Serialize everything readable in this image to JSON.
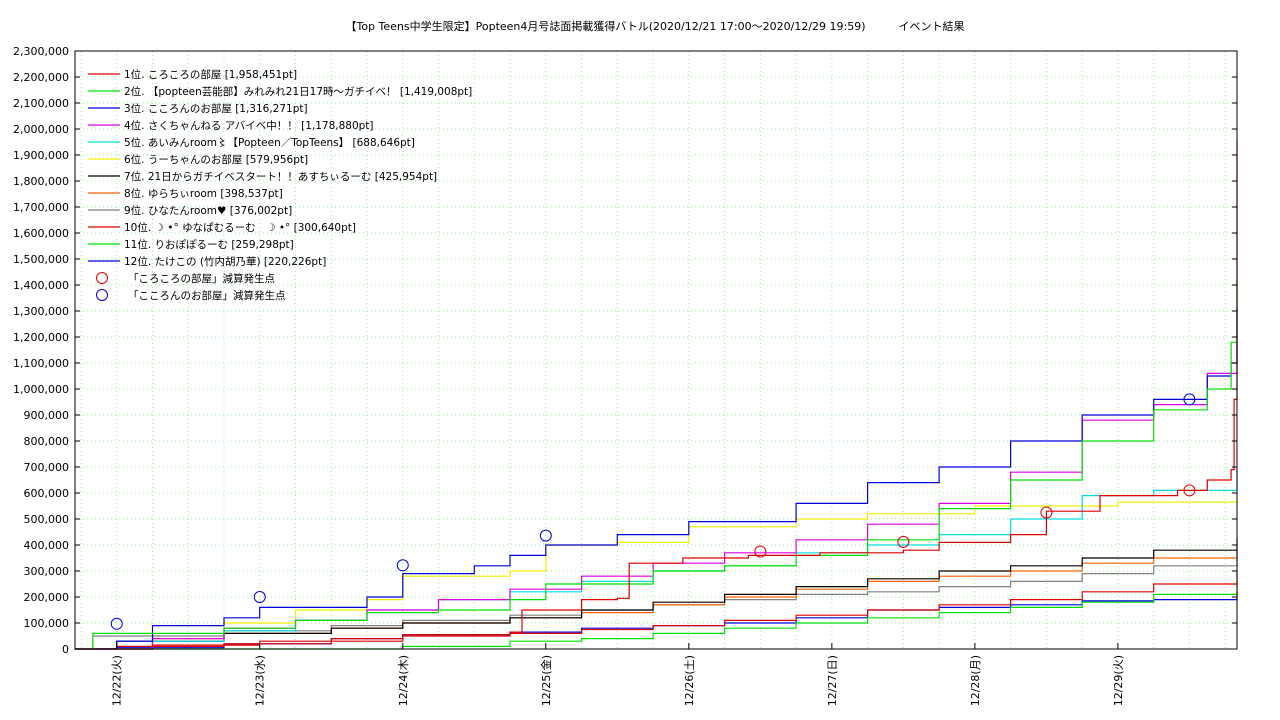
{
  "chart_data": {
    "type": "line",
    "title": "【Top Teens中学生限定】Popteen4月号誌面掲載獲得バトル(2020/12/21 17:00〜2020/12/29 19:59)　　　イベント結果",
    "xlabel": "",
    "ylabel": "",
    "grid": true,
    "legend_position": "top-left",
    "x_range": [
      "2020-12-21 17:00",
      "2020-12-29 19:59"
    ],
    "ylim": [
      0,
      2300000
    ],
    "y_ticks": [
      0,
      100000,
      200000,
      300000,
      400000,
      500000,
      600000,
      700000,
      800000,
      900000,
      1000000,
      1100000,
      1200000,
      1300000,
      1400000,
      1500000,
      1600000,
      1700000,
      1800000,
      1900000,
      2000000,
      2100000,
      2200000,
      2300000
    ],
    "y_tick_labels": [
      "0",
      "100,000",
      "200,000",
      "300,000",
      "400,000",
      "500,000",
      "600,000",
      "700,000",
      "800,000",
      "900,000",
      "1,000,000",
      "1,100,000",
      "1,200,000",
      "1,300,000",
      "1,400,000",
      "1,500,000",
      "1,600,000",
      "1,700,000",
      "1,800,000",
      "1,900,000",
      "2,000,000",
      "2,100,000",
      "2,200,000",
      "2,300,000"
    ],
    "x_ticks": [
      "2020-12-22",
      "2020-12-23",
      "2020-12-24",
      "2020-12-25",
      "2020-12-26",
      "2020-12-27",
      "2020-12-28",
      "2020-12-29"
    ],
    "x_tick_labels": [
      "12/22(火)",
      "12/23(水)",
      "12/24(木)",
      "12/25(金)",
      "12/26(土)",
      "12/27(日)",
      "12/28(月)",
      "12/29(火)"
    ],
    "series": [
      {
        "name": "1位. ころころの部屋 [1,958,451pt]",
        "color": "#e00000",
        "points": [
          [
            "2020-12-21 17:00",
            0
          ],
          [
            "2020-12-22 06:00",
            15000
          ],
          [
            "2020-12-23 00:00",
            30000
          ],
          [
            "2020-12-24 00:00",
            55000
          ],
          [
            "2020-12-24 18:00",
            65000
          ],
          [
            "2020-12-24 20:00",
            150000
          ],
          [
            "2020-12-25 06:00",
            190000
          ],
          [
            "2020-12-25 12:00",
            195000
          ],
          [
            "2020-12-25 14:00",
            330000
          ],
          [
            "2020-12-25 23:00",
            350000
          ],
          [
            "2020-12-26 10:00",
            360000
          ],
          [
            "2020-12-26 22:00",
            370000
          ],
          [
            "2020-12-27 12:00",
            380000
          ],
          [
            "2020-12-27 18:00",
            410000
          ],
          [
            "2020-12-28 06:00",
            440000
          ],
          [
            "2020-12-28 12:00",
            530000
          ],
          [
            "2020-12-28 21:00",
            590000
          ],
          [
            "2020-12-29 10:00",
            610000
          ],
          [
            "2020-12-29 15:00",
            650000
          ],
          [
            "2020-12-29 19:00",
            690000
          ],
          [
            "2020-12-29 19:30",
            960000
          ],
          [
            "2020-12-29 19:59",
            1958451
          ]
        ]
      },
      {
        "name": "2位. 【popteen芸能部】みれみれ21日17時〜ガチイベ！ [1,419,008pt]",
        "color": "#00e000",
        "points": [
          [
            "2020-12-21 17:00",
            0
          ],
          [
            "2020-12-21 20:00",
            60000
          ],
          [
            "2020-12-22 18:00",
            80000
          ],
          [
            "2020-12-23 06:00",
            110000
          ],
          [
            "2020-12-23 18:00",
            140000
          ],
          [
            "2020-12-24 06:00",
            150000
          ],
          [
            "2020-12-24 18:00",
            190000
          ],
          [
            "2020-12-25 00:00",
            250000
          ],
          [
            "2020-12-25 18:00",
            300000
          ],
          [
            "2020-12-26 06:00",
            320000
          ],
          [
            "2020-12-26 18:00",
            360000
          ],
          [
            "2020-12-27 06:00",
            420000
          ],
          [
            "2020-12-27 18:00",
            540000
          ],
          [
            "2020-12-28 06:00",
            650000
          ],
          [
            "2020-12-28 18:00",
            800000
          ],
          [
            "2020-12-29 06:00",
            920000
          ],
          [
            "2020-12-29 15:00",
            1000000
          ],
          [
            "2020-12-29 19:00",
            1180000
          ],
          [
            "2020-12-29 19:59",
            1419008
          ]
        ]
      },
      {
        "name": "3位. こころんのお部屋 [1,316,271pt]",
        "color": "#0000e0",
        "points": [
          [
            "2020-12-21 17:00",
            0
          ],
          [
            "2020-12-22 00:00",
            30000
          ],
          [
            "2020-12-22 06:00",
            90000
          ],
          [
            "2020-12-22 18:00",
            120000
          ],
          [
            "2020-12-23 00:00",
            160000
          ],
          [
            "2020-12-23 18:00",
            200000
          ],
          [
            "2020-12-24 00:00",
            290000
          ],
          [
            "2020-12-24 12:00",
            320000
          ],
          [
            "2020-12-24 18:00",
            360000
          ],
          [
            "2020-12-25 00:00",
            400000
          ],
          [
            "2020-12-25 12:00",
            440000
          ],
          [
            "2020-12-26 00:00",
            490000
          ],
          [
            "2020-12-26 18:00",
            560000
          ],
          [
            "2020-12-27 06:00",
            640000
          ],
          [
            "2020-12-27 18:00",
            700000
          ],
          [
            "2020-12-28 06:00",
            800000
          ],
          [
            "2020-12-28 18:00",
            900000
          ],
          [
            "2020-12-29 06:00",
            960000
          ],
          [
            "2020-12-29 15:00",
            1050000
          ],
          [
            "2020-12-29 19:00",
            1100000
          ],
          [
            "2020-12-29 19:59",
            1316271
          ]
        ]
      },
      {
        "name": "4位. さくちゃんねる アバイベ中！！ [1,178,880pt]",
        "color": "#e000e0",
        "points": [
          [
            "2020-12-21 17:00",
            0
          ],
          [
            "2020-12-22 06:00",
            40000
          ],
          [
            "2020-12-22 18:00",
            80000
          ],
          [
            "2020-12-23 06:00",
            110000
          ],
          [
            "2020-12-23 18:00",
            150000
          ],
          [
            "2020-12-24 06:00",
            190000
          ],
          [
            "2020-12-24 18:00",
            230000
          ],
          [
            "2020-12-25 06:00",
            280000
          ],
          [
            "2020-12-25 18:00",
            330000
          ],
          [
            "2020-12-26 06:00",
            370000
          ],
          [
            "2020-12-26 18:00",
            420000
          ],
          [
            "2020-12-27 06:00",
            480000
          ],
          [
            "2020-12-27 18:00",
            560000
          ],
          [
            "2020-12-28 06:00",
            680000
          ],
          [
            "2020-12-28 18:00",
            880000
          ],
          [
            "2020-12-29 06:00",
            940000
          ],
          [
            "2020-12-29 15:00",
            1060000
          ],
          [
            "2020-12-29 19:59",
            1178880
          ]
        ]
      },
      {
        "name": "5位. あいみんroom〻【Popteen／TopTeens】 [688,646pt]",
        "color": "#00e0e0",
        "points": [
          [
            "2020-12-21 17:00",
            0
          ],
          [
            "2020-12-22 06:00",
            30000
          ],
          [
            "2020-12-22 18:00",
            70000
          ],
          [
            "2020-12-23 06:00",
            110000
          ],
          [
            "2020-12-23 18:00",
            150000
          ],
          [
            "2020-12-24 06:00",
            190000
          ],
          [
            "2020-12-24 18:00",
            220000
          ],
          [
            "2020-12-25 06:00",
            260000
          ],
          [
            "2020-12-25 18:00",
            300000
          ],
          [
            "2020-12-26 06:00",
            320000
          ],
          [
            "2020-12-26 18:00",
            370000
          ],
          [
            "2020-12-27 06:00",
            400000
          ],
          [
            "2020-12-27 18:00",
            440000
          ],
          [
            "2020-12-28 06:00",
            500000
          ],
          [
            "2020-12-28 18:00",
            590000
          ],
          [
            "2020-12-29 06:00",
            610000
          ],
          [
            "2020-12-29 19:59",
            688646
          ]
        ]
      },
      {
        "name": "6位. うーちゃんのお部屋 [579,956pt]",
        "color": "#f0f000",
        "points": [
          [
            "2020-12-21 17:00",
            0
          ],
          [
            "2020-12-22 06:00",
            40000
          ],
          [
            "2020-12-22 18:00",
            100000
          ],
          [
            "2020-12-23 06:00",
            150000
          ],
          [
            "2020-12-23 18:00",
            190000
          ],
          [
            "2020-12-24 00:00",
            280000
          ],
          [
            "2020-12-24 18:00",
            300000
          ],
          [
            "2020-12-25 00:00",
            400000
          ],
          [
            "2020-12-25 12:00",
            410000
          ],
          [
            "2020-12-26 00:00",
            470000
          ],
          [
            "2020-12-26 18:00",
            500000
          ],
          [
            "2020-12-27 06:00",
            520000
          ],
          [
            "2020-12-28 00:00",
            550000
          ],
          [
            "2020-12-29 00:00",
            565000
          ],
          [
            "2020-12-29 19:59",
            579956
          ]
        ]
      },
      {
        "name": "7位. 21日からガチイベスタート！！あすちぃるーむ [425,954pt]",
        "color": "#000000",
        "points": [
          [
            "2020-12-21 17:00",
            0
          ],
          [
            "2020-12-22 00:00",
            30000
          ],
          [
            "2020-12-22 18:00",
            60000
          ],
          [
            "2020-12-23 12:00",
            80000
          ],
          [
            "2020-12-24 00:00",
            100000
          ],
          [
            "2020-12-24 18:00",
            120000
          ],
          [
            "2020-12-25 06:00",
            150000
          ],
          [
            "2020-12-25 18:00",
            180000
          ],
          [
            "2020-12-26 06:00",
            210000
          ],
          [
            "2020-12-26 18:00",
            240000
          ],
          [
            "2020-12-27 06:00",
            270000
          ],
          [
            "2020-12-27 18:00",
            300000
          ],
          [
            "2020-12-28 06:00",
            320000
          ],
          [
            "2020-12-28 18:00",
            350000
          ],
          [
            "2020-12-29 06:00",
            380000
          ],
          [
            "2020-12-29 19:59",
            425954
          ]
        ]
      },
      {
        "name": "8位. ゆらちぃroom [398,537pt]",
        "color": "#ff6000",
        "points": [
          [
            "2020-12-21 17:00",
            0
          ],
          [
            "2020-12-22 06:00",
            40000
          ],
          [
            "2020-12-22 18:00",
            60000
          ],
          [
            "2020-12-23 12:00",
            80000
          ],
          [
            "2020-12-24 00:00",
            100000
          ],
          [
            "2020-12-24 18:00",
            120000
          ],
          [
            "2020-12-25 06:00",
            140000
          ],
          [
            "2020-12-25 18:00",
            170000
          ],
          [
            "2020-12-26 06:00",
            200000
          ],
          [
            "2020-12-26 18:00",
            230000
          ],
          [
            "2020-12-27 06:00",
            260000
          ],
          [
            "2020-12-27 18:00",
            280000
          ],
          [
            "2020-12-28 06:00",
            300000
          ],
          [
            "2020-12-28 18:00",
            330000
          ],
          [
            "2020-12-29 06:00",
            350000
          ],
          [
            "2020-12-29 19:59",
            398537
          ]
        ]
      },
      {
        "name": "9位. ひなたんroom♥ [376,002pt]",
        "color": "#808080",
        "points": [
          [
            "2020-12-21 17:00",
            0
          ],
          [
            "2020-12-21 20:00",
            50000
          ],
          [
            "2020-12-22 18:00",
            70000
          ],
          [
            "2020-12-23 12:00",
            90000
          ],
          [
            "2020-12-24 00:00",
            110000
          ],
          [
            "2020-12-24 18:00",
            130000
          ],
          [
            "2020-12-25 06:00",
            150000
          ],
          [
            "2020-12-25 18:00",
            170000
          ],
          [
            "2020-12-26 06:00",
            190000
          ],
          [
            "2020-12-26 18:00",
            210000
          ],
          [
            "2020-12-27 06:00",
            220000
          ],
          [
            "2020-12-27 18:00",
            240000
          ],
          [
            "2020-12-28 06:00",
            260000
          ],
          [
            "2020-12-28 18:00",
            290000
          ],
          [
            "2020-12-29 06:00",
            320000
          ],
          [
            "2020-12-29 19:59",
            376002
          ]
        ]
      },
      {
        "name": "10位. ☽ •° ゆなぱむるーむ　☽ •° [300,640pt]",
        "color": "#e00000",
        "points": [
          [
            "2020-12-21 17:00",
            0
          ],
          [
            "2020-12-22 00:00",
            10000
          ],
          [
            "2020-12-22 18:00",
            20000
          ],
          [
            "2020-12-23 12:00",
            40000
          ],
          [
            "2020-12-24 00:00",
            50000
          ],
          [
            "2020-12-24 18:00",
            60000
          ],
          [
            "2020-12-25 06:00",
            75000
          ],
          [
            "2020-12-25 18:00",
            90000
          ],
          [
            "2020-12-26 06:00",
            110000
          ],
          [
            "2020-12-26 18:00",
            130000
          ],
          [
            "2020-12-27 06:00",
            150000
          ],
          [
            "2020-12-27 18:00",
            170000
          ],
          [
            "2020-12-28 06:00",
            190000
          ],
          [
            "2020-12-28 18:00",
            220000
          ],
          [
            "2020-12-29 06:00",
            250000
          ],
          [
            "2020-12-29 19:59",
            300640
          ]
        ]
      },
      {
        "name": "11位. りおぽぽるーむ [259,298pt]",
        "color": "#00e000",
        "points": [
          [
            "2020-12-21 17:00",
            0
          ],
          [
            "2020-12-23 12:00",
            0
          ],
          [
            "2020-12-24 00:00",
            10000
          ],
          [
            "2020-12-24 18:00",
            30000
          ],
          [
            "2020-12-25 06:00",
            40000
          ],
          [
            "2020-12-25 18:00",
            60000
          ],
          [
            "2020-12-26 06:00",
            80000
          ],
          [
            "2020-12-26 18:00",
            100000
          ],
          [
            "2020-12-27 06:00",
            120000
          ],
          [
            "2020-12-27 18:00",
            140000
          ],
          [
            "2020-12-28 06:00",
            160000
          ],
          [
            "2020-12-28 18:00",
            180000
          ],
          [
            "2020-12-29 06:00",
            210000
          ],
          [
            "2020-12-29 19:59",
            259298
          ]
        ]
      },
      {
        "name": "12位. たけこの (竹内胡乃華) [220,226pt]",
        "color": "#0000e0",
        "points": [
          [
            "2020-12-21 17:00",
            0
          ],
          [
            "2020-12-22 00:00",
            5000
          ],
          [
            "2020-12-22 18:00",
            20000
          ],
          [
            "2020-12-23 12:00",
            40000
          ],
          [
            "2020-12-24 00:00",
            55000
          ],
          [
            "2020-12-24 18:00",
            65000
          ],
          [
            "2020-12-25 06:00",
            80000
          ],
          [
            "2020-12-25 18:00",
            90000
          ],
          [
            "2020-12-26 06:00",
            100000
          ],
          [
            "2020-12-26 18:00",
            120000
          ],
          [
            "2020-12-27 06:00",
            150000
          ],
          [
            "2020-12-27 18:00",
            160000
          ],
          [
            "2020-12-28 06:00",
            170000
          ],
          [
            "2020-12-28 18:00",
            185000
          ],
          [
            "2020-12-29 06:00",
            190000
          ],
          [
            "2020-12-29 19:59",
            220226
          ]
        ]
      }
    ],
    "markers": [
      {
        "name": "「ころころの部屋」減算発生点",
        "color": "#e00000",
        "points": [
          [
            "2020-12-26 12:00",
            375000
          ],
          [
            "2020-12-27 12:00",
            412000
          ],
          [
            "2020-12-28 12:00",
            525000
          ],
          [
            "2020-12-29 12:00",
            610000
          ]
        ]
      },
      {
        "name": "「こころんのお部屋」減算発生点",
        "color": "#0000e0",
        "points": [
          [
            "2020-12-22 00:00",
            97000
          ],
          [
            "2020-12-23 00:00",
            200000
          ],
          [
            "2020-12-24 00:00",
            322000
          ],
          [
            "2020-12-25 00:00",
            436000
          ],
          [
            "2020-12-29 12:00",
            960000
          ]
        ]
      }
    ]
  }
}
